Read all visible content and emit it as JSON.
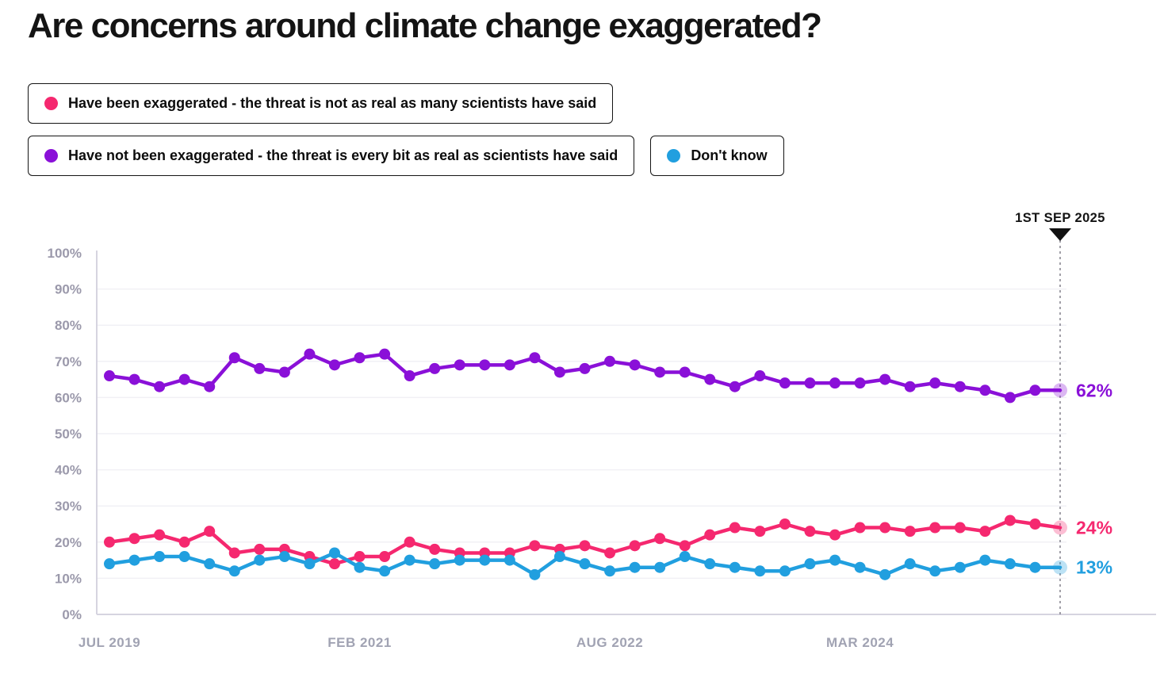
{
  "title": "Are concerns around climate change exaggerated?",
  "legend": [
    {
      "key": "have-been-exaggerated",
      "label": "Have been exaggerated - the threat is not as real as many scientists have said",
      "color": "#F5286F"
    },
    {
      "key": "have-not-been-exaggerated",
      "label": "Have not been exaggerated - the threat is every bit as real as scientists have said",
      "color": "#8A10D8"
    },
    {
      "key": "dont-know",
      "label": "Don't know",
      "color": "#219FDF"
    }
  ],
  "chart_data": {
    "type": "line",
    "title": "Are concerns around climate change exaggerated?",
    "n_points": 39,
    "x_axis": {
      "tick_labels": [
        "JUL 2019",
        "FEB 2021",
        "AUG 2022",
        "MAR 2024"
      ],
      "tick_indices": [
        0,
        10,
        20,
        30
      ],
      "annotation": "1ST SEP 2025",
      "annotation_index": 38
    },
    "y_axis": {
      "tick_labels": [
        "0%",
        "10%",
        "20%",
        "30%",
        "40%",
        "50%",
        "60%",
        "70%",
        "80%",
        "90%",
        "100%"
      ],
      "min": 0,
      "max": 100,
      "unit": "%"
    },
    "grid": "horizontal",
    "legend_position": "top",
    "series": [
      {
        "key": "have-not-been-exaggerated",
        "name": "Have not been exaggerated - the threat is every bit as real as scientists have said",
        "color": "#8A10D8",
        "end_label": "62%",
        "values": [
          66,
          65,
          63,
          65,
          63,
          71,
          68,
          67,
          72,
          69,
          71,
          72,
          66,
          68,
          69,
          69,
          69,
          71,
          67,
          68,
          70,
          69,
          67,
          67,
          65,
          63,
          66,
          64,
          64,
          64,
          64,
          65,
          63,
          64,
          63,
          62,
          60,
          62,
          62
        ]
      },
      {
        "key": "have-been-exaggerated",
        "name": "Have been exaggerated - the threat is not as real as many scientists have said",
        "color": "#F5286F",
        "end_label": "24%",
        "values": [
          20,
          21,
          22,
          20,
          23,
          17,
          18,
          18,
          16,
          14,
          16,
          16,
          20,
          18,
          17,
          17,
          17,
          19,
          18,
          19,
          17,
          19,
          21,
          19,
          22,
          24,
          23,
          25,
          23,
          22,
          24,
          24,
          23,
          24,
          24,
          23,
          26,
          25,
          24
        ]
      },
      {
        "key": "dont-know",
        "name": "Don't know",
        "color": "#219FDF",
        "end_label": "13%",
        "values": [
          14,
          15,
          16,
          16,
          14,
          12,
          15,
          16,
          14,
          17,
          13,
          12,
          15,
          14,
          15,
          15,
          15,
          11,
          16,
          14,
          12,
          13,
          13,
          16,
          14,
          13,
          12,
          12,
          14,
          15,
          13,
          11,
          14,
          12,
          13,
          15,
          14,
          13,
          13
        ]
      }
    ],
    "colors": {
      "grid": "#F1F0F5",
      "axis": "#D6D4E0",
      "y_tick_text": "#9B99AB",
      "x_tick_text": "#A1A3B3",
      "annotation_text": "#141414",
      "dashed_line": "#6F6D7A"
    }
  }
}
